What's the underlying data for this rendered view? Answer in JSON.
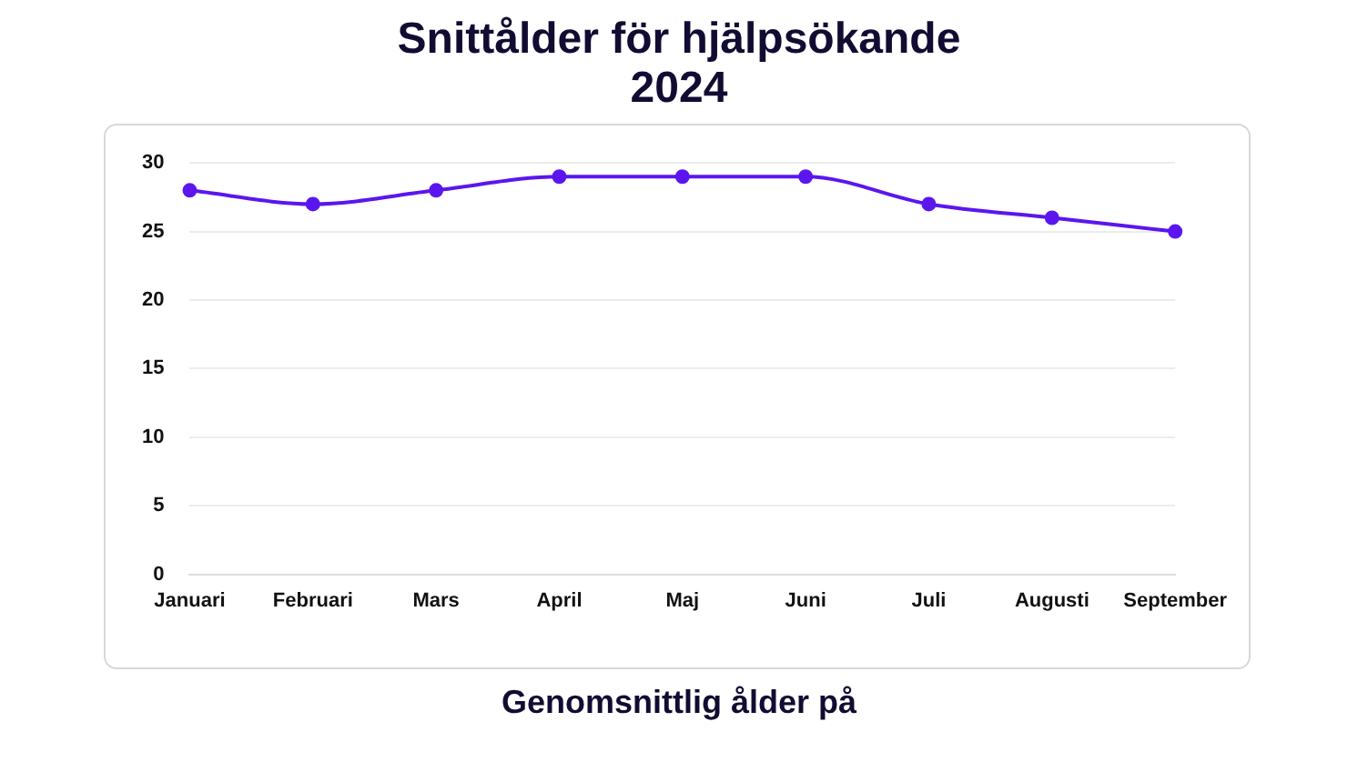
{
  "chart_data": {
    "type": "line",
    "title": "Snittålder för hjälpsökande 2024",
    "categories": [
      "Januari",
      "Februari",
      "Mars",
      "April",
      "Maj",
      "Juni",
      "Juli",
      "Augusti",
      "September"
    ],
    "series": [
      {
        "color": "#5b16ee",
        "values": [
          28,
          27,
          28,
          29,
          29,
          29,
          27,
          26,
          25
        ]
      }
    ],
    "ylim": [
      0,
      30
    ],
    "yticks": [
      0,
      5,
      10,
      15,
      20,
      25,
      30
    ],
    "grid": "y",
    "legend": false,
    "marker": "circle",
    "line_style": "solid",
    "annotations": [
      "Genomsnittlig ålder på"
    ]
  }
}
